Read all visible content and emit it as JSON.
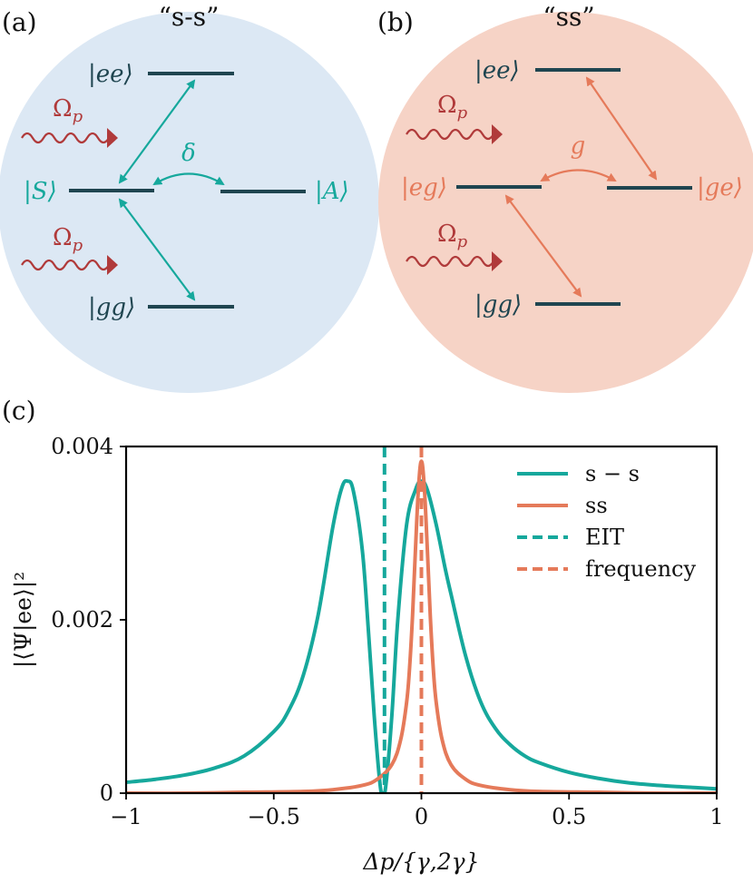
{
  "panels": {
    "a": {
      "letter": "(a)",
      "title": "“s-s”",
      "states": {
        "ee": "|ee⟩",
        "S": "|S⟩",
        "A": "|A⟩",
        "gg": "|gg⟩"
      },
      "drive": "Ωp",
      "coupling": "δ",
      "colors": {
        "circle": "#dce8f4",
        "arrow": "#16a89c",
        "level": "#1f4550",
        "drive": "#b03a3a"
      }
    },
    "b": {
      "letter": "(b)",
      "title": "“ss”",
      "states": {
        "ee": "|ee⟩",
        "eg": "|eg⟩",
        "ge": "|ge⟩",
        "gg": "|gg⟩"
      },
      "drive": "Ωp",
      "coupling": "g",
      "colors": {
        "circle": "#f6d3c6",
        "arrow": "#e57a5a",
        "level": "#1f4550",
        "drive": "#b03a3a"
      }
    },
    "c": {
      "letter": "(c)"
    }
  },
  "chart_data": {
    "type": "line",
    "xlabel": "Δp/{γ,2γ}",
    "ylabel": "|⟨Ψ|ee⟩|²",
    "xlim": [
      -1,
      1
    ],
    "ylim": [
      0,
      0.004
    ],
    "xticks": [
      -1,
      -0.5,
      0,
      0.5,
      1
    ],
    "xtick_labels": [
      "−1",
      "−0.5",
      "0",
      "0.5",
      "1"
    ],
    "yticks": [
      0,
      0.002,
      0.004
    ],
    "ytick_labels": [
      "0",
      "0.002",
      "0.004"
    ],
    "legend_position": "top-right",
    "series": [
      {
        "name": "s − s",
        "color": "#16a89c",
        "x": [
          -1.0,
          -0.9,
          -0.8,
          -0.7,
          -0.6,
          -0.5,
          -0.45,
          -0.4,
          -0.35,
          -0.3,
          -0.27,
          -0.25,
          -0.23,
          -0.2,
          -0.18,
          -0.16,
          -0.14,
          -0.13,
          -0.12,
          -0.1,
          -0.08,
          -0.05,
          -0.02,
          0.0,
          0.02,
          0.05,
          0.08,
          0.1,
          0.15,
          0.2,
          0.25,
          0.3,
          0.35,
          0.4,
          0.5,
          0.6,
          0.7,
          0.8,
          0.9,
          1.0
        ],
        "values": [
          0.000125,
          0.00016,
          0.00021,
          0.00029,
          0.00043,
          0.00071,
          0.00095,
          0.00136,
          0.00205,
          0.00307,
          0.00352,
          0.0036,
          0.00348,
          0.0028,
          0.0019,
          0.0009,
          0.0001,
          0.0,
          0.0001,
          0.0009,
          0.002,
          0.0031,
          0.0035,
          0.0036,
          0.0035,
          0.0031,
          0.0026,
          0.0023,
          0.00158,
          0.00106,
          0.00075,
          0.00056,
          0.00043,
          0.00035,
          0.00024,
          0.00017,
          0.00012,
          9e-05,
          7e-05,
          5e-05
        ]
      },
      {
        "name": "ss",
        "color": "#e57a5a",
        "x": [
          -1.0,
          -0.8,
          -0.6,
          -0.4,
          -0.3,
          -0.2,
          -0.15,
          -0.1,
          -0.07,
          -0.05,
          -0.04,
          -0.03,
          -0.02,
          -0.01,
          0.0,
          0.01,
          0.02,
          0.03,
          0.04,
          0.05,
          0.07,
          0.1,
          0.15,
          0.2,
          0.3,
          0.4,
          0.6,
          0.8,
          1.0
        ],
        "values": [
          0.0,
          0.0,
          1e-05,
          2e-05,
          4e-05,
          9e-05,
          0.00016,
          0.00033,
          0.00062,
          0.00105,
          0.00145,
          0.00205,
          0.00282,
          0.00352,
          0.00383,
          0.00352,
          0.00282,
          0.00205,
          0.00145,
          0.00105,
          0.00062,
          0.00033,
          0.00016,
          9e-05,
          4e-05,
          2e-05,
          1e-05,
          0.0,
          0.0
        ]
      }
    ],
    "vlines": [
      {
        "name": "EIT frequency",
        "x": -0.125,
        "color": "#16a89c"
      },
      {
        "name": "EIT frequency",
        "x": 0.0,
        "color": "#e57a5a"
      }
    ],
    "legend": [
      {
        "label": "s − s",
        "color": "#16a89c",
        "style": "solid"
      },
      {
        "label": "ss",
        "color": "#e57a5a",
        "style": "solid"
      },
      {
        "label": "EIT",
        "color": "#16a89c",
        "style": "dashed"
      },
      {
        "label": "frequency",
        "color": "#e57a5a",
        "style": "dashed"
      }
    ]
  }
}
